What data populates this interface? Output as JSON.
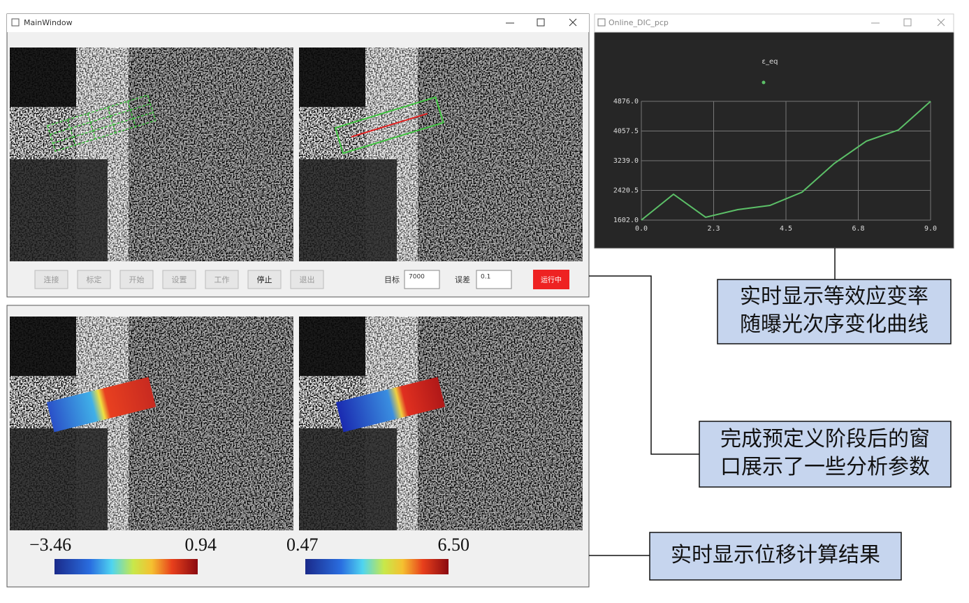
{
  "main_window": {
    "title": "MainWindow",
    "buttons": [
      "连接",
      "标定",
      "开始",
      "设置",
      "工作",
      "停止",
      "退出"
    ],
    "target_label": "目标",
    "target_value": "7000",
    "error_label": "误差",
    "error_value": "0.1",
    "status_button": "运行中"
  },
  "result_window": {
    "colorbars": [
      {
        "min": "−3.46",
        "max": "0.94"
      },
      {
        "min": "0.47",
        "max": "6.50"
      }
    ]
  },
  "plot_window": {
    "title": "Online_DIC_pcp"
  },
  "chart_data": {
    "type": "line",
    "title": "ε_eq",
    "x": [
      0,
      1,
      2,
      3,
      4,
      5,
      6,
      7,
      8,
      9
    ],
    "series": [
      {
        "color": "#5cc068",
        "values": [
          1602,
          2315,
          1680,
          1890,
          2006,
          2372,
          3162,
          3778,
          4086,
          4876
        ]
      }
    ],
    "xlim": [
      0,
      9
    ],
    "ylim": [
      1602,
      4876
    ],
    "xticks": [
      {
        "value": 0,
        "label": "0.0"
      },
      {
        "value": 2.25,
        "label": "2.3"
      },
      4.5,
      {
        "value": 6.75,
        "label": "6.8"
      },
      {
        "value": 9,
        "label": "9.0"
      }
    ],
    "yticks": [
      {
        "value": 1602,
        "label": "1602.0"
      },
      2420.5,
      {
        "value": 3239,
        "label": "3239.0"
      },
      4057.5,
      {
        "value": 4876,
        "label": "4876.0"
      }
    ],
    "grid": true
  },
  "callouts": [
    "实时显示等效应变率\n随曝光次序变化曲线",
    "完成预定义阶段后的窗\n口展示了一些分析参数",
    "实时显示位移计算结果"
  ]
}
